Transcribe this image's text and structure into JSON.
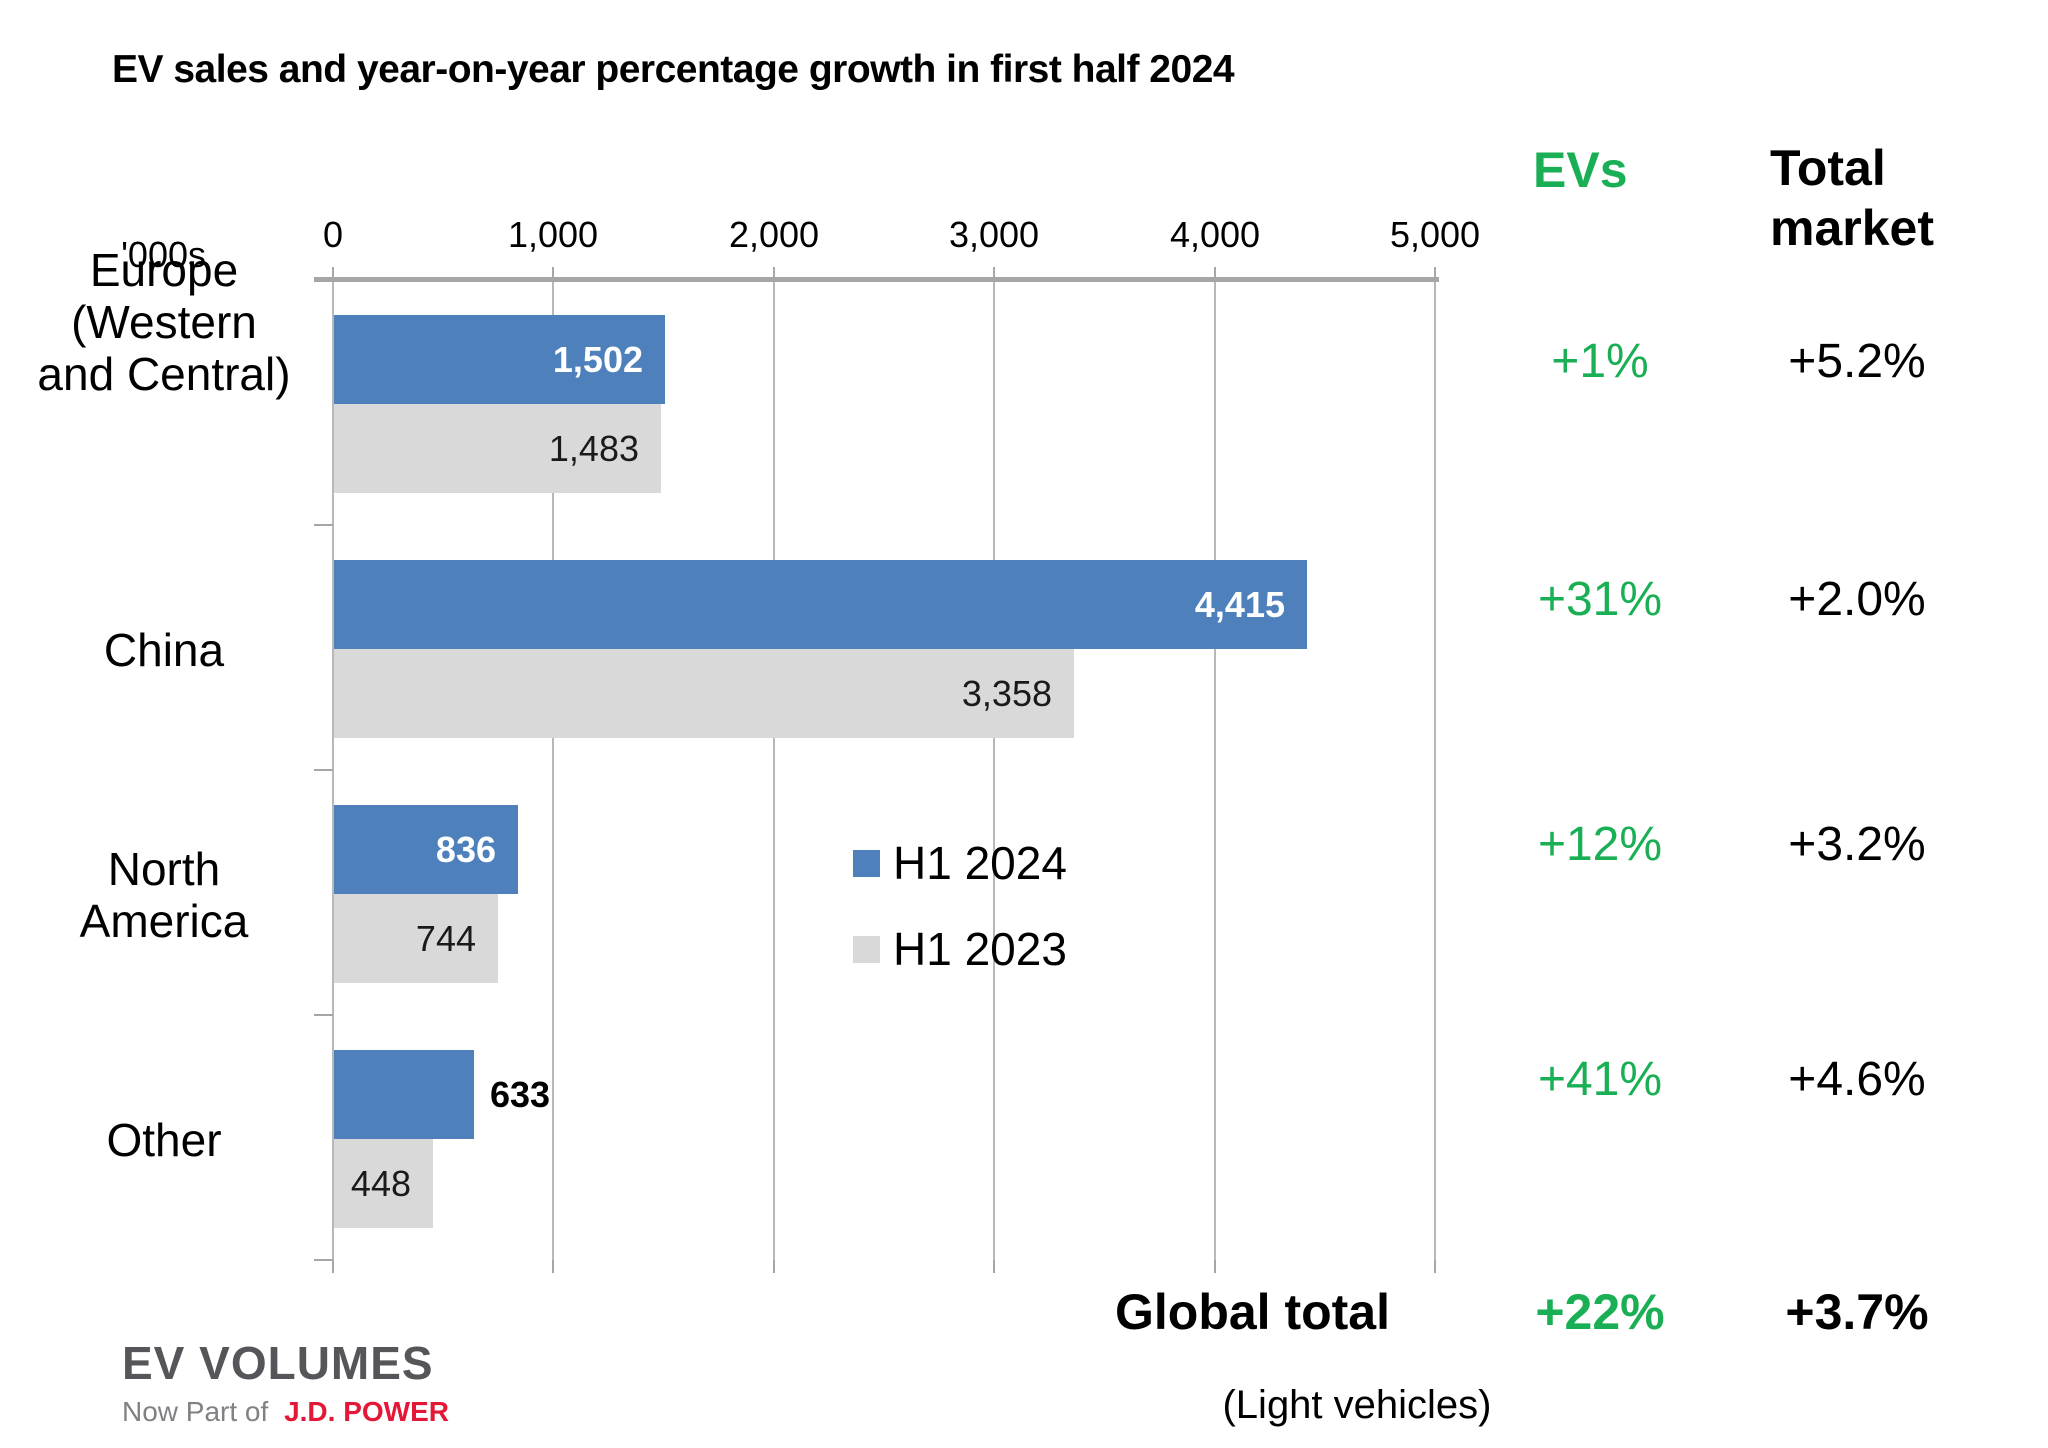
{
  "title": "EV sales and year-on-year percentage growth in first half 2024",
  "axis": {
    "unit_label": "'000s",
    "ticks": [
      "0",
      "1,000",
      "2,000",
      "3,000",
      "4,000",
      "5,000"
    ]
  },
  "columns": {
    "evs_header": "EVs",
    "total_market_header": "Total market"
  },
  "legend": [
    {
      "label": "H1 2024",
      "color": "#4e81bc"
    },
    {
      "label": "H1 2023",
      "color": "#d9d9d9"
    }
  ],
  "chart_data": {
    "type": "bar",
    "orientation": "horizontal",
    "title": "EV sales and year-on-year percentage growth in first half 2024",
    "unit": "thousands of vehicles ('000s)",
    "categories": [
      "Europe (Western and Central)",
      "China",
      "North America",
      "Other"
    ],
    "category_lines": [
      [
        "Europe",
        "(Western",
        "and Central)"
      ],
      [
        "China"
      ],
      [
        "North",
        "America"
      ],
      [
        "Other"
      ]
    ],
    "series": [
      {
        "name": "H1 2024",
        "color": "#4e81bc",
        "values": [
          1502,
          4415,
          836,
          633
        ],
        "labels": [
          "1,502",
          "4,415",
          "836",
          "633"
        ],
        "label_outside": [
          false,
          false,
          false,
          true
        ]
      },
      {
        "name": "H1 2023",
        "color": "#d9d9d9",
        "values": [
          1483,
          3358,
          744,
          448
        ],
        "labels": [
          "1,483",
          "3,358",
          "744",
          "448"
        ],
        "label_outside": [
          false,
          false,
          false,
          false
        ]
      }
    ],
    "xlim": [
      0,
      5000
    ],
    "x_ticks": [
      0,
      1000,
      2000,
      3000,
      4000,
      5000
    ],
    "grid": true,
    "legend_position": "center-right of plot",
    "growth": {
      "evs": [
        "+1%",
        "+31%",
        "+12%",
        "+41%"
      ],
      "total_market": [
        "+5.2%",
        "+2.0%",
        "+3.2%",
        "+4.6%"
      ]
    }
  },
  "footer": {
    "global_total_label": "Global total",
    "global_evs_growth": "+22%",
    "global_total_market_growth": "+3.7%",
    "note": "(Light vehicles)"
  },
  "logo": {
    "name": "EV VOLUMES",
    "tagline_prefix": "Now Part of",
    "tagline_brand": "J.D. POWER"
  },
  "colors": {
    "bar_h1_2024": "#4e81bc",
    "bar_h1_2023": "#d9d9d9",
    "growth_green": "#1aaf55",
    "grid_gray": "#b8b8b8",
    "axis_gray": "#a6a6a6",
    "logo_gray": "#55565a",
    "tagline_gray": "#808184",
    "logo_red": "#e31837"
  }
}
